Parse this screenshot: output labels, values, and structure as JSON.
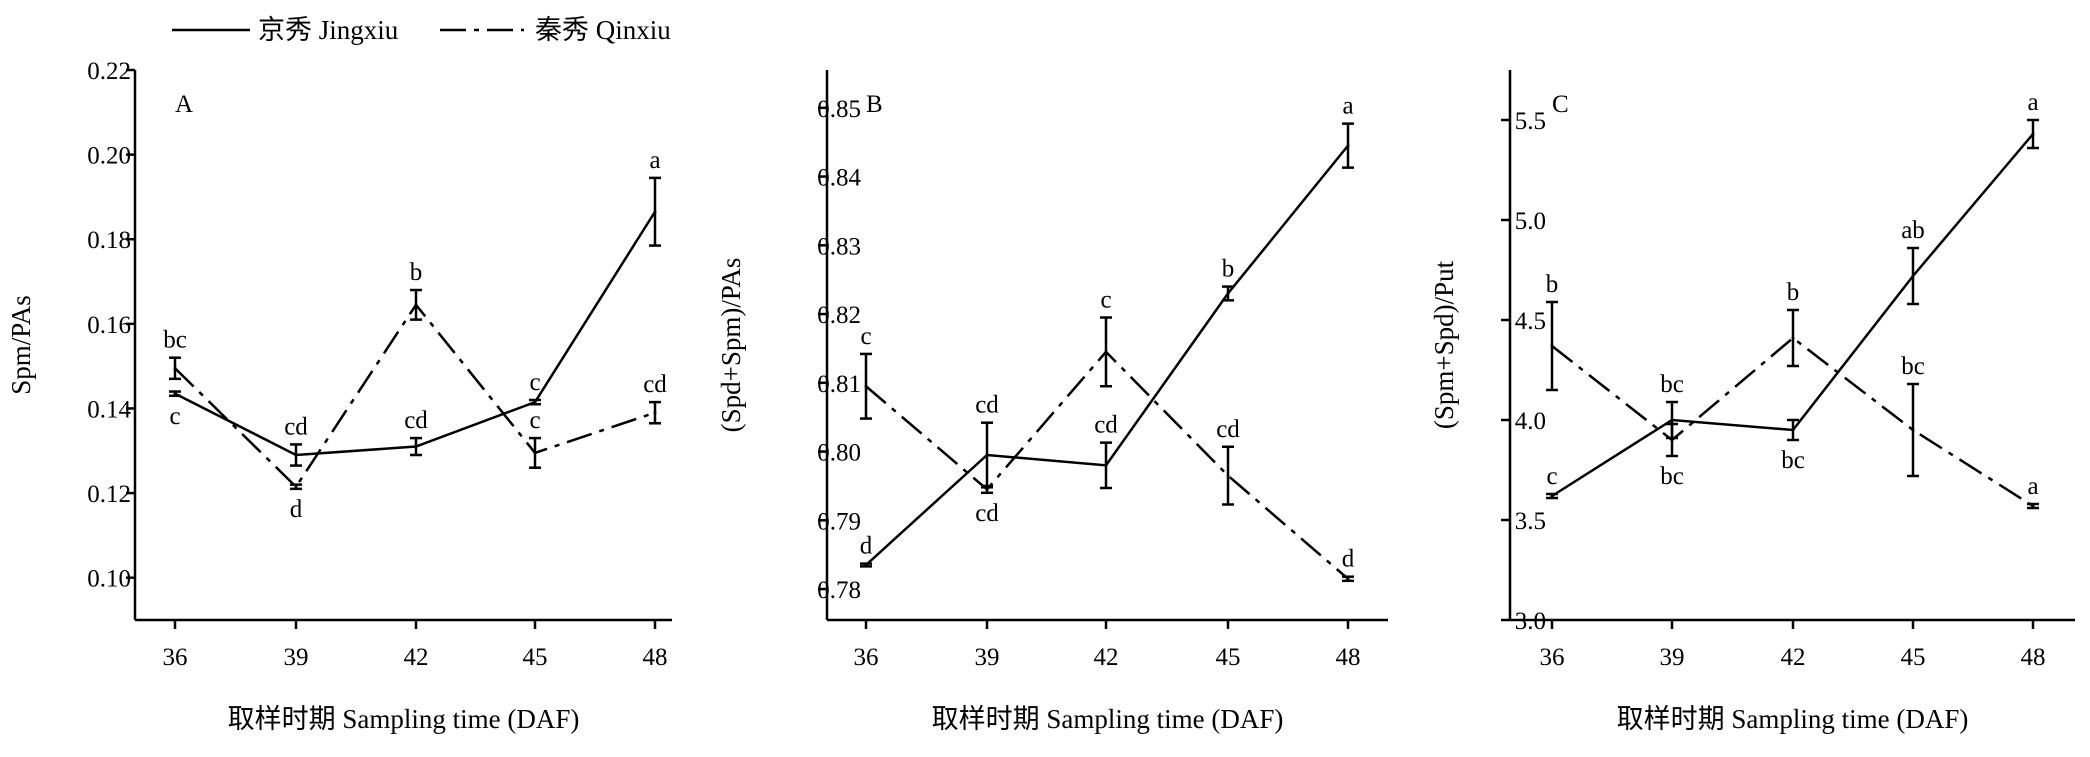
{
  "legend": {
    "series": [
      {
        "name": "京秀 Jingxiu",
        "line_style": "solid"
      },
      {
        "name": "秦秀 Qinxiu",
        "line_style": "dash-dot"
      }
    ]
  },
  "chart_data": [
    {
      "type": "line",
      "panel": "A",
      "xlabel": "取样时期 Sampling time (DAF)",
      "ylabel": "Spm/PAs",
      "x": [
        36,
        39,
        42,
        45,
        48
      ],
      "xticks": [
        "36",
        "39",
        "42",
        "45",
        "48"
      ],
      "ylim": [
        0.09,
        0.22
      ],
      "yticks": [
        0.1,
        0.12,
        0.14,
        0.16,
        0.18,
        0.2,
        0.22
      ],
      "ytick_labels": [
        "0.10",
        "0.12",
        "0.14",
        "0.16",
        "0.18",
        "0.20",
        "0.22"
      ],
      "grid": false,
      "series": [
        {
          "name": "京秀 Jingxiu",
          "values": [
            0.1435,
            0.129,
            0.131,
            0.1415,
            0.1865
          ],
          "errors": [
            0.0005,
            0.0025,
            0.002,
            0.0005,
            0.008
          ],
          "letters": [
            "c",
            "cd",
            "cd",
            "c",
            "a"
          ],
          "letter_pos": [
            "below",
            "above",
            "above",
            "above",
            "above"
          ]
        },
        {
          "name": "秦秀 Qinxiu",
          "values": [
            0.1495,
            0.1215,
            0.1645,
            0.1295,
            0.139
          ],
          "errors": [
            0.0025,
            0.0005,
            0.0035,
            0.0035,
            0.0025
          ],
          "letters": [
            "bc",
            "d",
            "b",
            "c",
            "cd"
          ],
          "letter_pos": [
            "above",
            "below",
            "above",
            "above",
            "above"
          ]
        }
      ]
    },
    {
      "type": "line",
      "panel": "B",
      "xlabel": "取样时期 Sampling time (DAF)",
      "ylabel": "(Spd+Spm)/PAs",
      "x": [
        36,
        39,
        42,
        45,
        48
      ],
      "xticks": [
        "36",
        "39",
        "42",
        "45",
        "48"
      ],
      "ylim": [
        0.7755,
        0.8555
      ],
      "yticks": [
        0.78,
        0.79,
        0.8,
        0.81,
        0.82,
        0.83,
        0.84,
        0.85
      ],
      "ytick_labels": [
        "0.78",
        "0.79",
        "0.80",
        "0.81",
        "0.82",
        "0.83",
        "0.84",
        "0.85"
      ],
      "grid": false,
      "series": [
        {
          "name": "京秀 Jingxiu",
          "values": [
            0.7835,
            0.7995,
            0.798,
            0.823,
            0.8445
          ],
          "errors": [
            0.0002,
            0.0047,
            0.0033,
            0.001,
            0.0032
          ],
          "letters": [
            "d",
            "cd",
            "cd",
            "b",
            "a"
          ],
          "letter_pos": [
            "above",
            "above",
            "above",
            "above",
            "above"
          ]
        },
        {
          "name": "秦秀 Qinxiu",
          "values": [
            0.8095,
            0.7945,
            0.8145,
            0.7965,
            0.7815
          ],
          "errors": [
            0.0047,
            0.0005,
            0.005,
            0.0042,
            0.0003
          ],
          "letters": [
            "c",
            "cd",
            "c",
            "cd",
            "d"
          ],
          "letter_pos": [
            "above",
            "below",
            "above",
            "above",
            "above"
          ]
        }
      ]
    },
    {
      "type": "line",
      "panel": "C",
      "xlabel": "取样时期 Sampling time (DAF)",
      "ylabel": "(Spm+Spd)/Put",
      "x": [
        36,
        39,
        42,
        45,
        48
      ],
      "xticks": [
        "36",
        "39",
        "42",
        "45",
        "48"
      ],
      "ylim": [
        3.0,
        5.75
      ],
      "yticks": [
        3.0,
        3.5,
        4.0,
        4.5,
        5.0,
        5.5
      ],
      "ytick_labels": [
        "3.0",
        "3.5",
        "4.0",
        "4.5",
        "5.0",
        "5.5"
      ],
      "grid": false,
      "series": [
        {
          "name": "京秀 Jingxiu",
          "values": [
            3.62,
            4.0,
            3.95,
            4.72,
            5.43
          ],
          "errors": [
            0.01,
            0.09,
            0.05,
            0.14,
            0.07
          ],
          "letters": [
            "c",
            "bc",
            "bc",
            "ab",
            "a"
          ],
          "letter_pos": [
            "above",
            "above",
            "below",
            "above",
            "above"
          ]
        },
        {
          "name": "秦秀 Qinxiu",
          "values": [
            4.37,
            3.9,
            4.41,
            3.95,
            3.57
          ],
          "errors": [
            0.22,
            0.08,
            0.14,
            0.23,
            0.01
          ],
          "letters": [
            "b",
            "bc",
            "b",
            "bc",
            "a"
          ],
          "letter_pos": [
            "above",
            "below",
            "above",
            "above",
            "above"
          ]
        }
      ]
    }
  ]
}
